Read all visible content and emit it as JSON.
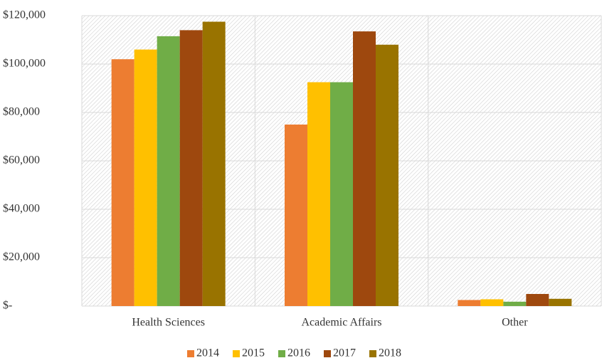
{
  "chart_data": {
    "type": "bar",
    "categories": [
      "Health Sciences",
      "Academic Affairs",
      "Other"
    ],
    "series": [
      {
        "name": "2014",
        "color": "#ed7d31",
        "values": [
          102000,
          75000,
          2500
        ]
      },
      {
        "name": "2015",
        "color": "#ffc000",
        "values": [
          106000,
          92500,
          2800
        ]
      },
      {
        "name": "2016",
        "color": "#70ad47",
        "values": [
          111500,
          92500,
          1800
        ]
      },
      {
        "name": "2017",
        "color": "#9e480e",
        "values": [
          114000,
          113500,
          5000
        ]
      },
      {
        "name": "2018",
        "color": "#997300",
        "values": [
          117500,
          108000,
          3000
        ]
      }
    ],
    "ylim": [
      0,
      120000
    ],
    "yticks": [
      {
        "value": 0,
        "label": "$-"
      },
      {
        "value": 20000,
        "label": "$20,000"
      },
      {
        "value": 40000,
        "label": "$40,000"
      },
      {
        "value": 60000,
        "label": "$60,000"
      },
      {
        "value": 80000,
        "label": "$80,000"
      },
      {
        "value": 100000,
        "label": "$100,000"
      },
      {
        "value": 120000,
        "label": "$120,000"
      }
    ],
    "grid": true,
    "legend": "bottom"
  }
}
